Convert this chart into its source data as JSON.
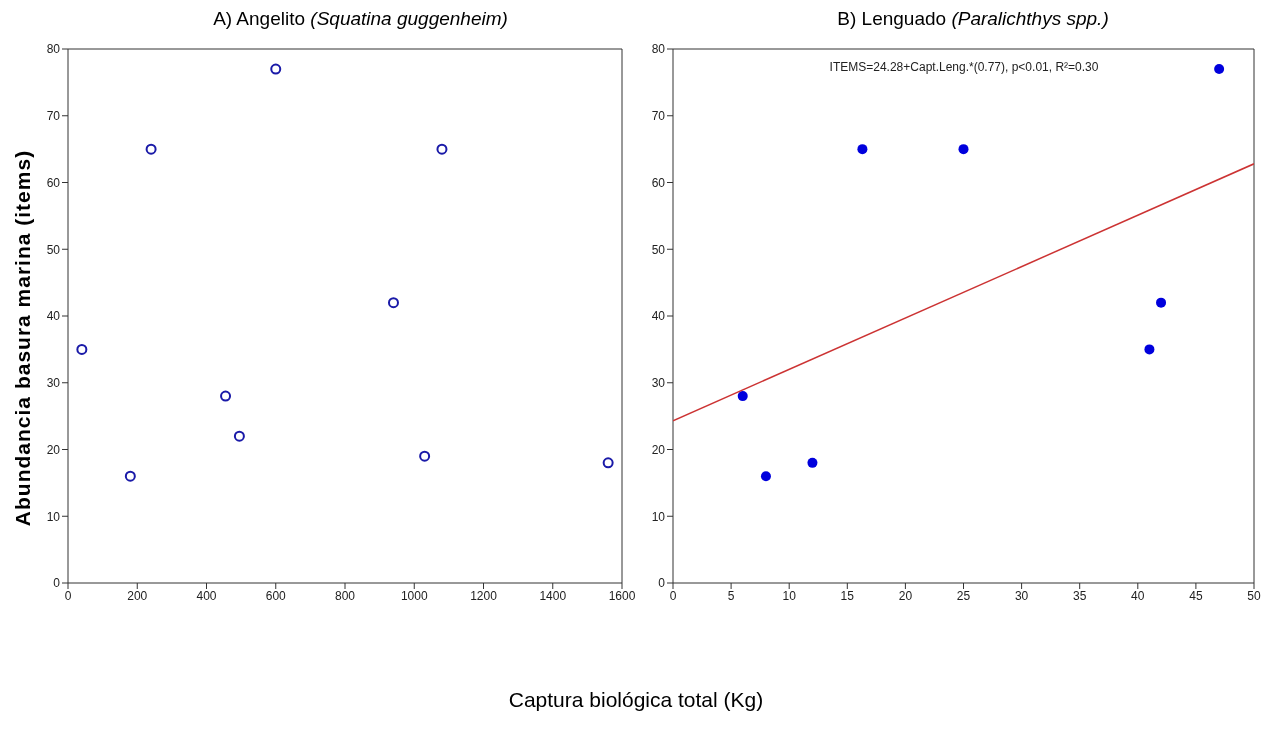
{
  "chart_data": [
    {
      "type": "scatter",
      "title": "A) Angelito (Squatina guggenheim)",
      "ylabel": "Abundancia basura marina (items)",
      "xlabel": "Captura biológica total (Kg)",
      "marker": "circle",
      "xlim": [
        0,
        1600
      ],
      "xticks": [
        0,
        200,
        400,
        600,
        800,
        1000,
        1200,
        1400,
        1600
      ],
      "ylim": [
        0,
        80
      ],
      "yticks": [
        0,
        10,
        20,
        30,
        40,
        50,
        60,
        70,
        80
      ],
      "series": [
        {
          "color": "#1a1aa8",
          "x": [
            40,
            180,
            240,
            455,
            495,
            600,
            940,
            1030,
            1080,
            1560
          ],
          "values": [
            35,
            16,
            65,
            28,
            22,
            77,
            42,
            19,
            65,
            18
          ]
        }
      ]
    },
    {
      "type": "scatter",
      "title": "B) Lenguado (Paralichthys spp.)",
      "marker": "circle",
      "xlim": [
        0,
        50
      ],
      "xticks": [
        0,
        5,
        10,
        15,
        20,
        25,
        30,
        35,
        40,
        45,
        50
      ],
      "ylim": [
        0,
        80
      ],
      "yticks": [
        0,
        10,
        20,
        30,
        40,
        50,
        60,
        70,
        80
      ],
      "annotations": [
        "ITEMS=24.28+Capt.Leng.*(0.77), p<0.01, R²=0.30"
      ],
      "series": [
        {
          "color": "#0000dd",
          "x": [
            6,
            8,
            12,
            16.3,
            25,
            41,
            42,
            47
          ],
          "values": [
            28,
            16,
            18,
            65,
            65,
            35,
            42,
            77
          ]
        },
        {
          "type": "line",
          "marker": "none",
          "color": "#cc3333",
          "x": [
            0,
            50
          ],
          "values": [
            24.3,
            62.8
          ]
        }
      ]
    }
  ]
}
